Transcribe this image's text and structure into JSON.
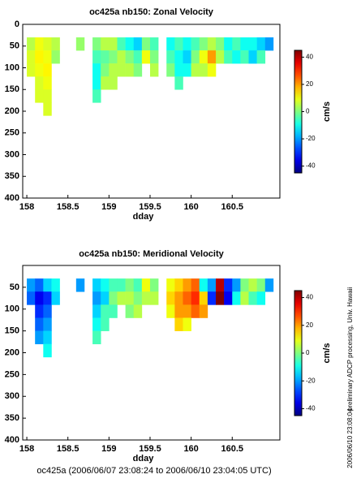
{
  "chart_data": [
    {
      "type": "heatmap",
      "title": "oc425a nb150: Zonal Velocity",
      "xlabel": "dday",
      "x": [
        158.05,
        158.15,
        158.25,
        158.35,
        158.45,
        158.55,
        158.65,
        158.75,
        158.85,
        158.95,
        159.05,
        159.15,
        159.25,
        159.35,
        159.45,
        159.55,
        159.65,
        159.75,
        159.85,
        159.95,
        160.05,
        160.15,
        160.25,
        160.35,
        160.45,
        160.55,
        160.65,
        160.75,
        160.85,
        160.95
      ],
      "y": [
        45,
        75,
        105,
        135,
        165,
        195
      ],
      "z": [
        [
          5,
          10,
          8,
          5,
          null,
          null,
          2,
          null,
          0,
          5,
          5,
          -5,
          -10,
          -15,
          0,
          -5,
          null,
          -10,
          -5,
          -10,
          -5,
          0,
          5,
          0,
          -10,
          -5,
          -10,
          -10,
          -15,
          -20
        ],
        [
          8,
          12,
          10,
          2,
          null,
          null,
          null,
          null,
          -5,
          -3,
          0,
          5,
          0,
          -5,
          10,
          0,
          null,
          -5,
          -10,
          -15,
          0,
          10,
          20,
          5,
          -5,
          -10,
          -5,
          -15,
          -5,
          null
        ],
        [
          8,
          10,
          12,
          null,
          null,
          null,
          null,
          null,
          -10,
          0,
          5,
          5,
          5,
          0,
          null,
          5,
          null,
          0,
          -10,
          -10,
          5,
          5,
          10,
          null,
          null,
          null,
          null,
          null,
          null,
          null
        ],
        [
          null,
          8,
          10,
          null,
          null,
          null,
          null,
          null,
          -10,
          5,
          5,
          null,
          null,
          null,
          null,
          null,
          null,
          null,
          -5,
          null,
          null,
          null,
          null,
          null,
          null,
          null,
          null,
          null,
          null,
          null
        ],
        [
          null,
          8,
          8,
          null,
          null,
          null,
          null,
          null,
          -5,
          null,
          null,
          null,
          null,
          null,
          null,
          null,
          null,
          null,
          null,
          null,
          null,
          null,
          null,
          null,
          null,
          null,
          null,
          null,
          null,
          null
        ],
        [
          null,
          null,
          8,
          null,
          null,
          null,
          null,
          null,
          null,
          null,
          null,
          null,
          null,
          null,
          null,
          null,
          null,
          null,
          null,
          null,
          null,
          null,
          null,
          null,
          null,
          null,
          null,
          null,
          null,
          null
        ]
      ],
      "xlim": [
        157.95,
        161.08
      ],
      "ylim": [
        400,
        0
      ],
      "xticks": [
        158,
        158.5,
        159,
        159.5,
        160,
        160.5
      ],
      "yticks": [
        0,
        50,
        100,
        150,
        200,
        250,
        300,
        350,
        400
      ],
      "clim": [
        -45,
        45
      ],
      "cticks": [
        -40,
        -20,
        0,
        20,
        40
      ],
      "clabel": "cm/s",
      "colormap": "jet"
    },
    {
      "type": "heatmap",
      "title": "oc425a nb150: Meridional Velocity",
      "xlabel": "dday",
      "x": [
        158.05,
        158.15,
        158.25,
        158.35,
        158.45,
        158.55,
        158.65,
        158.75,
        158.85,
        158.95,
        159.05,
        159.15,
        159.25,
        159.35,
        159.45,
        159.55,
        159.65,
        159.75,
        159.85,
        159.95,
        160.05,
        160.15,
        160.25,
        160.35,
        160.45,
        160.55,
        160.65,
        160.75,
        160.85,
        160.95
      ],
      "y": [
        45,
        75,
        105,
        135,
        165,
        195
      ],
      "z": [
        [
          -20,
          -25,
          -15,
          -10,
          null,
          null,
          -20,
          null,
          -15,
          -10,
          -5,
          -5,
          0,
          -5,
          10,
          0,
          null,
          10,
          15,
          20,
          25,
          -10,
          -20,
          40,
          -30,
          -20,
          0,
          5,
          0,
          -20
        ],
        [
          -25,
          -35,
          -30,
          -15,
          null,
          null,
          null,
          null,
          -20,
          -15,
          0,
          5,
          5,
          0,
          5,
          5,
          null,
          15,
          20,
          25,
          30,
          15,
          -30,
          45,
          -35,
          -10,
          5,
          -5,
          -10,
          null
        ],
        [
          null,
          -30,
          -25,
          null,
          null,
          null,
          null,
          null,
          -15,
          -5,
          -5,
          null,
          0,
          5,
          null,
          null,
          null,
          10,
          20,
          20,
          25,
          20,
          null,
          null,
          null,
          null,
          null,
          null,
          null,
          null
        ],
        [
          null,
          -25,
          -20,
          null,
          null,
          null,
          null,
          null,
          -10,
          -5,
          null,
          null,
          null,
          null,
          null,
          null,
          null,
          null,
          15,
          10,
          null,
          null,
          null,
          null,
          null,
          null,
          null,
          null,
          null,
          null
        ],
        [
          null,
          -20,
          -15,
          null,
          null,
          null,
          null,
          null,
          -5,
          null,
          null,
          null,
          null,
          null,
          null,
          null,
          null,
          null,
          null,
          null,
          null,
          null,
          null,
          null,
          null,
          null,
          null,
          null,
          null,
          null
        ],
        [
          null,
          null,
          -10,
          null,
          null,
          null,
          null,
          null,
          null,
          null,
          null,
          null,
          null,
          null,
          null,
          null,
          null,
          null,
          null,
          null,
          null,
          null,
          null,
          null,
          null,
          null,
          null,
          null,
          null,
          null
        ]
      ],
      "xlim": [
        157.95,
        161.08
      ],
      "ylim": [
        400,
        0
      ],
      "xticks": [
        158,
        158.5,
        159,
        159.5,
        160,
        160.5
      ],
      "yticks": [
        50,
        100,
        150,
        200,
        250,
        300,
        350,
        400
      ],
      "clim": [
        -45,
        45
      ],
      "cticks": [
        -40,
        -20,
        0,
        20,
        40
      ],
      "clabel": "cm/s",
      "colormap": "jet"
    }
  ],
  "footer": "oc425a (2006/06/07 23:08:24 to 2006/06/10 23:04:05 UTC)",
  "side_note": "preliminary ADCP processing,  Univ. Hawaii",
  "side_date": "2006/06/10 23:08:04"
}
